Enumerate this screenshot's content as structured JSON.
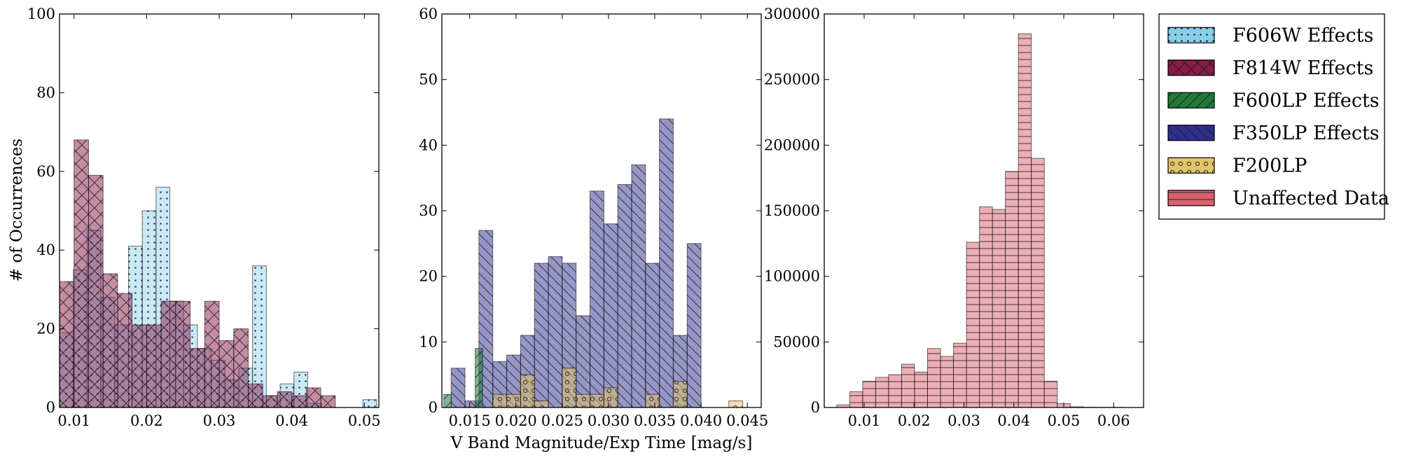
{
  "figure": {
    "ylabel": "# of Occurrences",
    "xlabel": "V Band Magnitude/Exp Time [mag/s]"
  },
  "legend": {
    "placement": "upper-right",
    "entries": [
      {
        "key": "f606w",
        "label": "F606W Effects",
        "color": "#87CEEB",
        "hatch": "dots"
      },
      {
        "key": "f814w",
        "label": "F814W Effects",
        "color": "#8B1A4B",
        "hatch": "crosshatch"
      },
      {
        "key": "f600lp",
        "label": "F600LP Effects",
        "color": "#1F7A3A",
        "hatch": "forward-diagonal"
      },
      {
        "key": "f350lp",
        "label": "F350LP Effects",
        "color": "#2E2E8F",
        "hatch": "back-diagonal"
      },
      {
        "key": "f200lp",
        "label": "F200LP",
        "color": "#E2C46A",
        "hatch": "circles"
      },
      {
        "key": "unaffected",
        "label": "Unaffected Data",
        "color": "#D9606E",
        "hatch": "horizontal"
      }
    ]
  },
  "chart_data": [
    {
      "type": "bar",
      "panel": "left",
      "xlim": [
        0.008,
        0.052
      ],
      "ylim": [
        0,
        100
      ],
      "xticks": [
        "0.01",
        "0.02",
        "0.03",
        "0.04",
        "0.05"
      ],
      "xtick_values": [
        0.01,
        0.02,
        0.03,
        0.04,
        0.05
      ],
      "yticks": [
        "0",
        "20",
        "40",
        "60",
        "80",
        "100"
      ],
      "ytick_values": [
        0,
        20,
        40,
        60,
        80,
        100
      ],
      "grid": false,
      "series": [
        {
          "key": "f606w",
          "name": "F606W Effects",
          "color": "#87CEEB",
          "opacity": 0.45,
          "hatch": "dots",
          "bin_edges": [
            0.008,
            0.0099,
            0.0118,
            0.0137,
            0.0156,
            0.0175,
            0.0194,
            0.0213,
            0.0232,
            0.0251,
            0.027,
            0.0289,
            0.0308,
            0.0327,
            0.0346,
            0.0365,
            0.0384,
            0.0403,
            0.0422,
            0.0441,
            0.046,
            0.0479,
            0.0498,
            0.0517
          ],
          "values": [
            19,
            35,
            45,
            28,
            21,
            41,
            50,
            56,
            27,
            21,
            15,
            12,
            7,
            10,
            36,
            3,
            6,
            9,
            1,
            0,
            0,
            0,
            2
          ]
        },
        {
          "key": "f814w",
          "name": "F814W Effects",
          "color": "#8B1A4B",
          "opacity": 0.5,
          "hatch": "crosshatch",
          "bin_edges": [
            0.008,
            0.01,
            0.012,
            0.014,
            0.016,
            0.018,
            0.02,
            0.022,
            0.024,
            0.026,
            0.028,
            0.03,
            0.032,
            0.034,
            0.036,
            0.038,
            0.04,
            0.042,
            0.044,
            0.046
          ],
          "values": [
            32,
            68,
            59,
            34,
            29,
            21,
            21,
            27,
            27,
            15,
            27,
            17,
            20,
            6,
            3,
            4,
            3,
            5,
            3
          ]
        }
      ]
    },
    {
      "type": "bar",
      "panel": "middle",
      "xlim": [
        0.012,
        0.0465
      ],
      "ylim": [
        0,
        60
      ],
      "xticks": [
        "0.015",
        "0.020",
        "0.025",
        "0.030",
        "0.035",
        "0.040",
        "0.045"
      ],
      "xtick_values": [
        0.015,
        0.02,
        0.025,
        0.03,
        0.035,
        0.04,
        0.045
      ],
      "yticks": [
        "0",
        "10",
        "20",
        "30",
        "40",
        "50",
        "60"
      ],
      "ytick_values": [
        0,
        10,
        20,
        30,
        40,
        50,
        60
      ],
      "xlabel": "V Band Magnitude/Exp Time [mag/s]",
      "grid": false,
      "series": [
        {
          "key": "f350lp",
          "name": "F350LP Effects",
          "color": "#2E2E8F",
          "opacity": 0.5,
          "hatch": "back-diagonal",
          "bin_edges": [
            0.013,
            0.0145,
            0.016,
            0.0175,
            0.019,
            0.0205,
            0.022,
            0.0235,
            0.025,
            0.0265,
            0.028,
            0.0295,
            0.031,
            0.0325,
            0.034,
            0.0355,
            0.037,
            0.0385,
            0.04,
            0.0415,
            0.043
          ],
          "values": [
            6,
            1,
            27,
            7,
            8,
            11,
            22,
            23,
            22,
            14,
            33,
            28,
            34,
            37,
            22,
            44,
            11,
            25,
            0,
            0
          ]
        },
        {
          "key": "f600lp",
          "name": "F600LP Effects",
          "color": "#1F7A3A",
          "opacity": 0.55,
          "hatch": "forward-diagonal",
          "bin_edges": [
            0.0122,
            0.013,
            0.0156,
            0.0164,
            0.0172
          ],
          "values": [
            2,
            0,
            9,
            0
          ]
        },
        {
          "key": "f200lp",
          "name": "F200LP",
          "color": "#E2C46A",
          "opacity": 0.55,
          "hatch": "circles",
          "bin_edges": [
            0.0175,
            0.019,
            0.0205,
            0.022,
            0.0235,
            0.025,
            0.0265,
            0.028,
            0.0295,
            0.031,
            0.0325,
            0.034,
            0.0355,
            0.037,
            0.0385,
            0.04,
            0.0415,
            0.043,
            0.0445
          ],
          "values": [
            2,
            2,
            5,
            1,
            0,
            6,
            2,
            2,
            3,
            0,
            0,
            2,
            0,
            4,
            0,
            0,
            0,
            1
          ]
        }
      ]
    },
    {
      "type": "bar",
      "panel": "right",
      "xlim": [
        0.002,
        0.066
      ],
      "ylim": [
        0,
        300000
      ],
      "xticks": [
        "0.01",
        "0.02",
        "0.03",
        "0.04",
        "0.05",
        "0.06"
      ],
      "xtick_values": [
        0.01,
        0.02,
        0.03,
        0.04,
        0.05,
        0.06
      ],
      "yticks": [
        "0",
        "50000",
        "100000",
        "150000",
        "200000",
        "250000",
        "300000"
      ],
      "ytick_values": [
        0,
        50000,
        100000,
        150000,
        200000,
        250000,
        300000
      ],
      "grid": false,
      "series": [
        {
          "key": "unaffected",
          "name": "Unaffected Data",
          "color": "#D9606E",
          "opacity": 0.5,
          "hatch": "horizontal",
          "bin_edges": [
            0.0045,
            0.0071,
            0.0097,
            0.0123,
            0.0149,
            0.0175,
            0.0201,
            0.0227,
            0.0253,
            0.0279,
            0.0305,
            0.0331,
            0.0357,
            0.0383,
            0.0409,
            0.0435,
            0.0461,
            0.0487,
            0.0513,
            0.0539,
            0.0565,
            0.0591,
            0.0617
          ],
          "values": [
            2000,
            12000,
            20000,
            23000,
            25000,
            33000,
            27000,
            45000,
            39000,
            49000,
            126000,
            153000,
            151000,
            180000,
            285000,
            190000,
            20000,
            3000,
            500,
            200,
            100,
            100
          ]
        }
      ]
    }
  ]
}
